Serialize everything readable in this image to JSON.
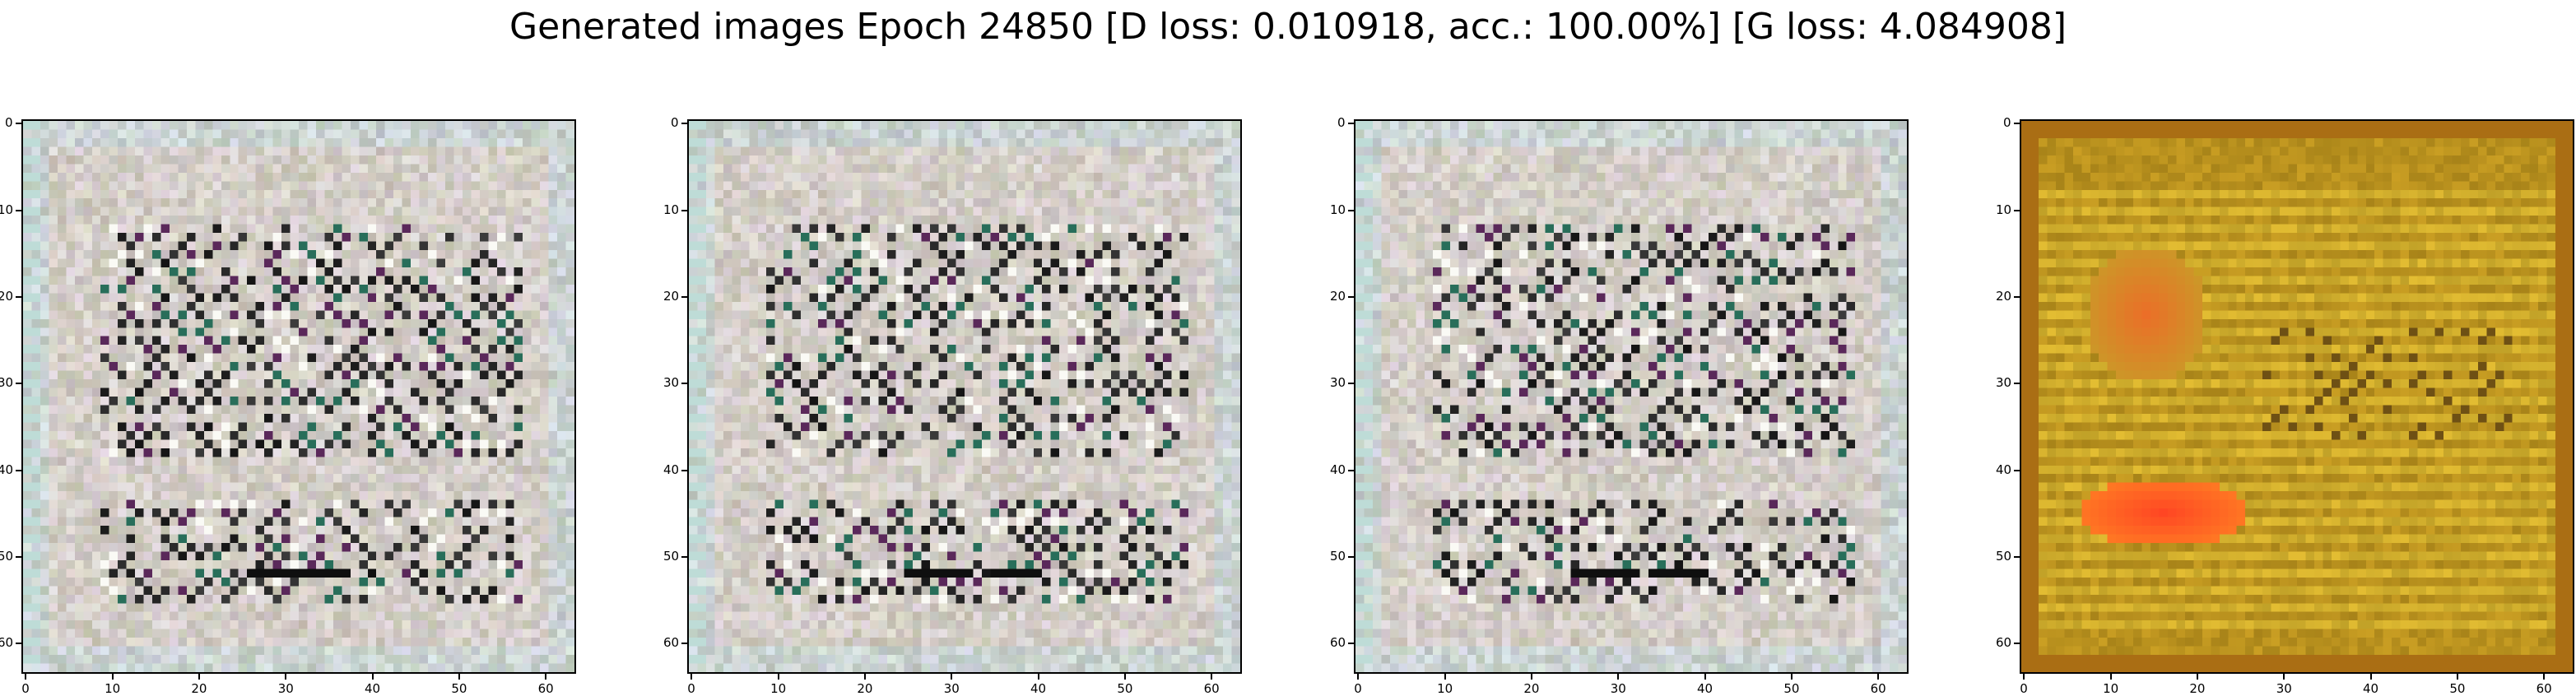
{
  "title": "Generated images Epoch 24850 [D loss: 0.010918, acc.: 100.00%] [G loss: 4.084908]",
  "chart_data": [
    {
      "type": "heatmap",
      "style": "light-gray-text-noise",
      "xticks": [
        0,
        10,
        20,
        30,
        40,
        50,
        60
      ],
      "yticks": [
        0,
        10,
        20,
        30,
        40,
        50,
        60
      ],
      "xlim": [
        0,
        63
      ],
      "ylim": [
        63,
        0
      ],
      "grid": false
    },
    {
      "type": "heatmap",
      "style": "light-gray-text-noise",
      "xticks": [
        0,
        10,
        20,
        30,
        40,
        50,
        60
      ],
      "yticks": [
        0,
        10,
        20,
        30,
        40,
        50,
        60
      ],
      "xlim": [
        0,
        63
      ],
      "ylim": [
        63,
        0
      ],
      "grid": false
    },
    {
      "type": "heatmap",
      "style": "light-gray-text-noise",
      "xticks": [
        0,
        10,
        20,
        30,
        40,
        50,
        60
      ],
      "yticks": [
        0,
        10,
        20,
        30,
        40,
        50,
        60
      ],
      "xlim": [
        0,
        63
      ],
      "ylim": [
        63,
        0
      ],
      "grid": false
    },
    {
      "type": "heatmap",
      "style": "ochre-with-red-blobs",
      "xticks": [
        0,
        10,
        20,
        30,
        40,
        50,
        60
      ],
      "yticks": [
        0,
        10,
        20,
        30,
        40,
        50,
        60
      ],
      "xlim": [
        0,
        63
      ],
      "ylim": [
        63,
        0
      ],
      "grid": false
    }
  ],
  "colors": {
    "light_bg": "#d8d2cc",
    "ochre_bg": "#b8901a",
    "red_blob": "#ff4a2a"
  }
}
